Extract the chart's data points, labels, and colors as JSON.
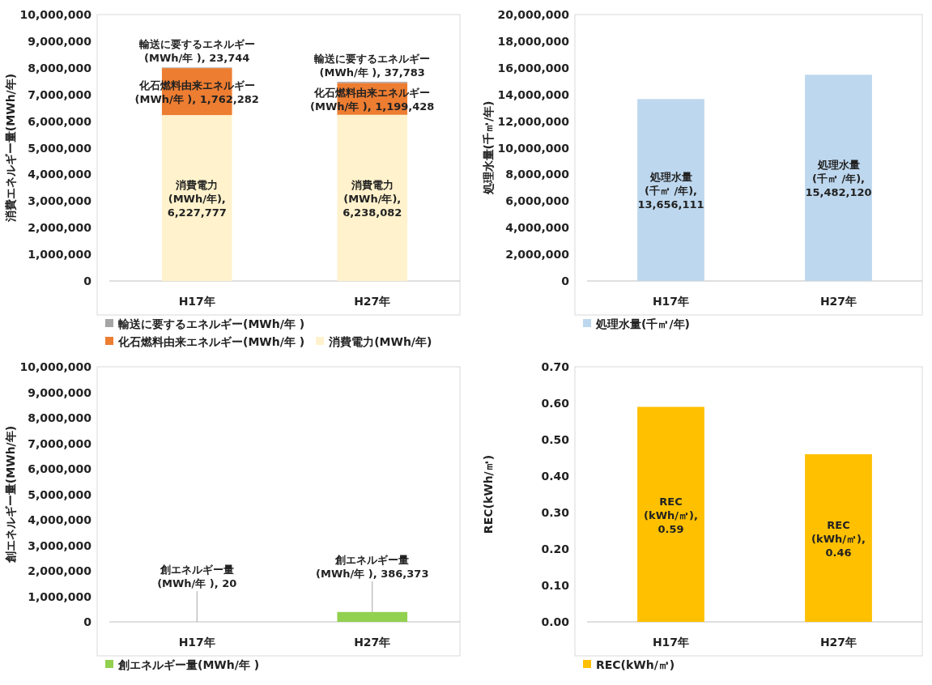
{
  "chart_data": [
    {
      "type": "bar",
      "stacked": true,
      "categories": [
        "H17年",
        "H27年"
      ],
      "ylabel": "消費エネルギー量(MWh/年)",
      "legend": "bottom",
      "ylim": [
        0,
        10000000
      ],
      "yticks": [
        {
          "value": 0,
          "label": "0"
        },
        {
          "value": 1000000,
          "label": "1,000,000"
        },
        {
          "value": 2000000,
          "label": "2,000,000"
        },
        {
          "value": 3000000,
          "label": "3,000,000"
        },
        {
          "value": 4000000,
          "label": "4,000,000"
        },
        {
          "value": 5000000,
          "label": "5,000,000"
        },
        {
          "value": 6000000,
          "label": "6,000,000"
        },
        {
          "value": 7000000,
          "label": "7,000,000"
        },
        {
          "value": 8000000,
          "label": "8,000,000"
        },
        {
          "value": 9000000,
          "label": "9,000,000"
        },
        {
          "value": 10000000,
          "label": "10,000,000"
        }
      ],
      "series": [
        {
          "name": "消費電力(MWh/年)",
          "color": "#fff2cc",
          "values": [
            6227777,
            6238082
          ],
          "value_labels": [
            "消費電力 (MWh/年), 6,227,777",
            "消費電力 (MWh/年), 6,238,082"
          ]
        },
        {
          "name": "化石燃料由来エネルギー(MWh/年 )",
          "color": "#ed7d31",
          "values": [
            1762282,
            1199428
          ],
          "value_labels": [
            "化石燃料由来エネルギー (MWh/年 ), 1,762,282",
            "化石燃料由来エネルギー (MWh/年 ), 1,199,428"
          ]
        },
        {
          "name": "輸送に要するエネルギー(MWh/年 )",
          "color": "#a5a5a5",
          "values": [
            23744,
            37783
          ],
          "value_labels": [
            "輸送に要するエネルギー (MWh/年 ), 23,744",
            "輸送に要するエネルギー (MWh/年 ), 37,783"
          ]
        }
      ]
    },
    {
      "type": "bar",
      "categories": [
        "H17年",
        "H27年"
      ],
      "ylabel": "処理水量(千㎥/年)",
      "legend": "bottom",
      "ylim": [
        0,
        20000000
      ],
      "yticks": [
        {
          "value": 0,
          "label": "0"
        },
        {
          "value": 2000000,
          "label": "2,000,000"
        },
        {
          "value": 4000000,
          "label": "4,000,000"
        },
        {
          "value": 6000000,
          "label": "6,000,000"
        },
        {
          "value": 8000000,
          "label": "8,000,000"
        },
        {
          "value": 10000000,
          "label": "10,000,000"
        },
        {
          "value": 12000000,
          "label": "12,000,000"
        },
        {
          "value": 14000000,
          "label": "14,000,000"
        },
        {
          "value": 16000000,
          "label": "16,000,000"
        },
        {
          "value": 18000000,
          "label": "18,000,000"
        },
        {
          "value": 20000000,
          "label": "20,000,000"
        }
      ],
      "series": [
        {
          "name": "処理水量(千㎥/年)",
          "color": "#bdd7ee",
          "values": [
            13656111,
            15482120
          ],
          "value_labels": [
            "処理水量(千㎥ /年), 13,656,111",
            "処理水量(千㎥ /年), 15,482,120"
          ]
        }
      ]
    },
    {
      "type": "bar",
      "categories": [
        "H17年",
        "H27年"
      ],
      "ylabel": "創エネルギー量(MWh/年)",
      "legend": "bottom",
      "ylim": [
        0,
        10000000
      ],
      "yticks": [
        {
          "value": 0,
          "label": "0"
        },
        {
          "value": 1000000,
          "label": "1,000,000"
        },
        {
          "value": 2000000,
          "label": "2,000,000"
        },
        {
          "value": 3000000,
          "label": "3,000,000"
        },
        {
          "value": 4000000,
          "label": "4,000,000"
        },
        {
          "value": 5000000,
          "label": "5,000,000"
        },
        {
          "value": 6000000,
          "label": "6,000,000"
        },
        {
          "value": 7000000,
          "label": "7,000,000"
        },
        {
          "value": 8000000,
          "label": "8,000,000"
        },
        {
          "value": 9000000,
          "label": "9,000,000"
        },
        {
          "value": 10000000,
          "label": "10,000,000"
        }
      ],
      "series": [
        {
          "name": "創エネルギー量(MWh/年 )",
          "color": "#92d050",
          "values": [
            20,
            386373
          ],
          "value_labels": [
            "創エネルギー量(MWh/年 ), 20",
            "創エネルギー量(MWh/年 ), 386,373"
          ]
        }
      ]
    },
    {
      "type": "bar",
      "categories": [
        "H17年",
        "H27年"
      ],
      "ylabel": "REC(kWh/㎥)",
      "legend": "bottom",
      "ylim": [
        0,
        0.7
      ],
      "yticks": [
        {
          "value": 0,
          "label": "0.00"
        },
        {
          "value": 0.1,
          "label": "0.10"
        },
        {
          "value": 0.2,
          "label": "0.20"
        },
        {
          "value": 0.3,
          "label": "0.30"
        },
        {
          "value": 0.4,
          "label": "0.40"
        },
        {
          "value": 0.5,
          "label": "0.50"
        },
        {
          "value": 0.6,
          "label": "0.60"
        },
        {
          "value": 0.7,
          "label": "0.70"
        }
      ],
      "series": [
        {
          "name": "REC(kWh/㎥)",
          "color": "#ffc000",
          "values": [
            0.59,
            0.46
          ],
          "value_labels": [
            "REC(kWh/㎥), 0.59",
            "REC(kWh/㎥), 0.46"
          ]
        }
      ]
    }
  ]
}
